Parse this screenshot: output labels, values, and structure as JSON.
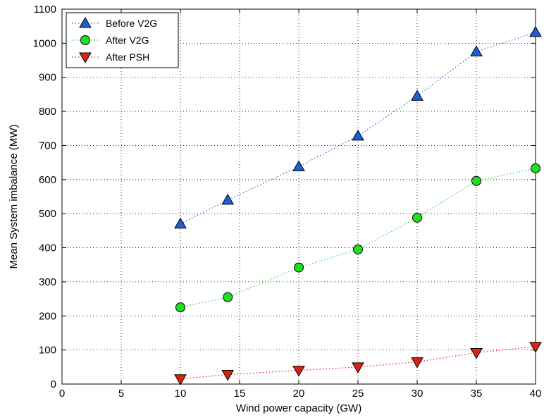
{
  "chart_data": {
    "type": "line",
    "title": "",
    "xlabel": "Wind power capacity (GW)",
    "ylabel": "Mean System imbalance (MW)",
    "xlim": [
      0,
      40
    ],
    "ylim": [
      0,
      1100
    ],
    "xticks": [
      0,
      5,
      10,
      15,
      20,
      25,
      30,
      35,
      40
    ],
    "yticks": [
      0,
      100,
      200,
      300,
      400,
      500,
      600,
      700,
      800,
      900,
      1000,
      1100
    ],
    "grid": true,
    "legend_position": "top-left",
    "x": [
      10,
      14,
      20,
      25,
      30,
      35,
      40
    ],
    "series": [
      {
        "name": "Before V2G",
        "marker": "triangle-up",
        "color": "#1f5fd6",
        "values": [
          470,
          540,
          638,
          728,
          845,
          975,
          1032
        ]
      },
      {
        "name": "After V2G",
        "marker": "circle",
        "color": "#22dd22",
        "values": [
          225,
          255,
          342,
          395,
          488,
          596,
          633
        ]
      },
      {
        "name": "After PSH",
        "marker": "triangle-down",
        "color": "#dd2211",
        "values": [
          15,
          28,
          40,
          50,
          65,
          92,
          110
        ]
      }
    ]
  }
}
